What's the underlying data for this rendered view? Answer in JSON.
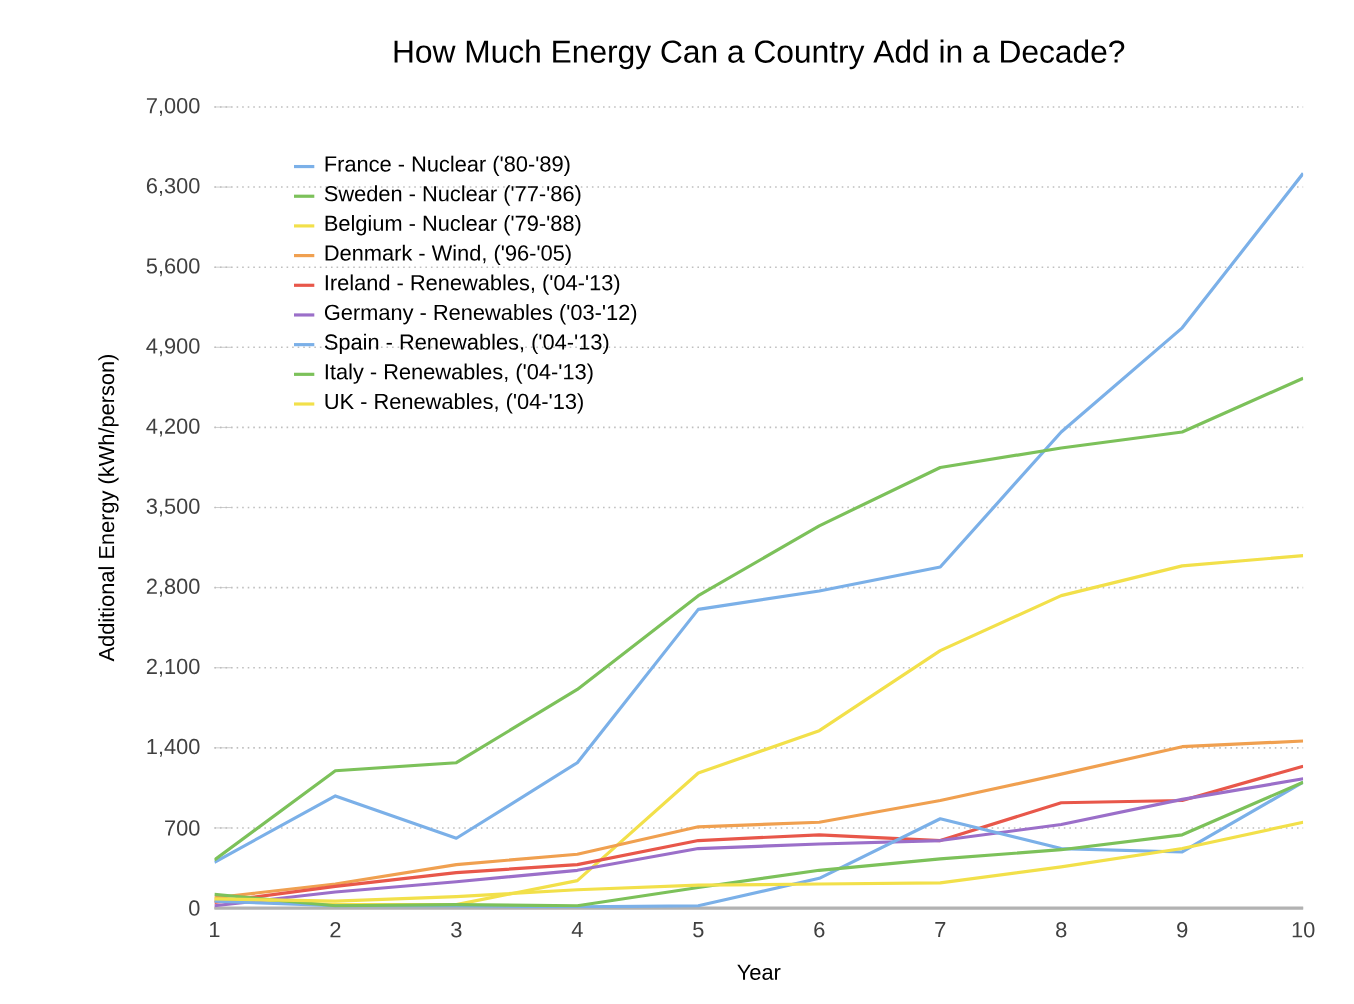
{
  "chart_data": {
    "type": "line",
    "title": "How Much Energy Can a Country Add in a Decade?",
    "xlabel": "Year",
    "ylabel": "Additional Energy (kWh/person)",
    "x": [
      1,
      2,
      3,
      4,
      5,
      6,
      7,
      8,
      9,
      10
    ],
    "xlim": [
      1,
      10
    ],
    "xticks": [
      1,
      2,
      3,
      4,
      5,
      6,
      7,
      8,
      9,
      10
    ],
    "ylim": [
      0,
      7000
    ],
    "yticks": [
      {
        "value": 0,
        "label": "0"
      },
      {
        "value": 700,
        "label": "700"
      },
      {
        "value": 1400,
        "label": "1,400"
      },
      {
        "value": 2100,
        "label": "2,100"
      },
      {
        "value": 2800,
        "label": "2,800"
      },
      {
        "value": 3500,
        "label": "3,500"
      },
      {
        "value": 4200,
        "label": "4,200"
      },
      {
        "value": 4900,
        "label": "4,900"
      },
      {
        "value": 5600,
        "label": "5,600"
      },
      {
        "value": 6300,
        "label": "6,300"
      },
      {
        "value": 7000,
        "label": "7,000"
      }
    ],
    "grid": "y",
    "legend": "top left",
    "marker": "none",
    "line_style": "solid",
    "series": [
      {
        "name": "France - Nuclear ('80-'89)",
        "color": "#7bb0e8",
        "values": [
          400,
          980,
          610,
          1270,
          2610,
          2770,
          2980,
          4160,
          5070,
          6420
        ]
      },
      {
        "name": "Sweden - Nuclear ('77-'86)",
        "color": "#7cc15a",
        "values": [
          420,
          1200,
          1270,
          1910,
          2730,
          3340,
          3850,
          4020,
          4160,
          4630
        ]
      },
      {
        "name": "Belgium - Nuclear ('79-'88)",
        "color": "#f2e04a",
        "values": [
          70,
          30,
          30,
          240,
          1180,
          1550,
          2250,
          2730,
          2990,
          3080
        ]
      },
      {
        "name": "Denmark - Wind, ('96-'05)",
        "color": "#f0a050",
        "values": [
          90,
          210,
          380,
          470,
          710,
          750,
          940,
          1170,
          1410,
          1460
        ]
      },
      {
        "name": "Ireland - Renewables, ('04-'13)",
        "color": "#e8574a",
        "values": [
          50,
          190,
          310,
          380,
          590,
          640,
          590,
          920,
          940,
          1240
        ]
      },
      {
        "name": "Germany - Renewables ('03-'12)",
        "color": "#9b6fc9",
        "values": [
          20,
          140,
          230,
          330,
          520,
          560,
          590,
          730,
          950,
          1130
        ]
      },
      {
        "name": "Spain - Renewables, ('04-'13)",
        "color": "#7bb0e8",
        "values": [
          60,
          20,
          20,
          10,
          20,
          260,
          780,
          520,
          490,
          1100
        ]
      },
      {
        "name": "Italy - Renewables, ('04-'13)",
        "color": "#7cc15a",
        "values": [
          120,
          20,
          30,
          20,
          180,
          330,
          430,
          510,
          640,
          1100
        ]
      },
      {
        "name": "UK - Renewables, ('04-'13)",
        "color": "#f2e04a",
        "values": [
          80,
          60,
          100,
          160,
          200,
          210,
          220,
          360,
          520,
          750
        ]
      }
    ]
  }
}
